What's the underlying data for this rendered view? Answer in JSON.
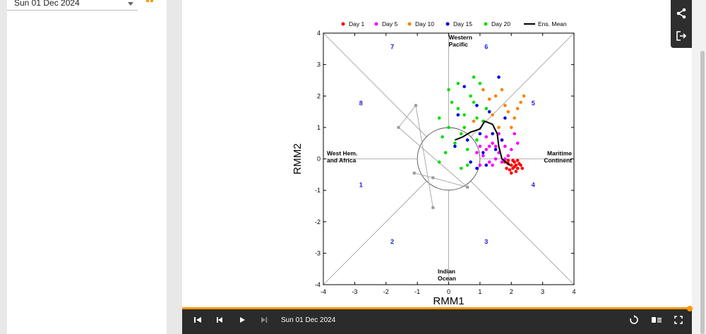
{
  "sidebar": {
    "date_select": "Sun 01 Dec 2024"
  },
  "plot": {
    "xlabel": "RMM1",
    "ylabel": "RMM2",
    "xticks": [
      "-4",
      "-3",
      "-2",
      "-1",
      "0",
      "1",
      "2",
      "3",
      "4"
    ],
    "yticks": [
      "4",
      "3",
      "2",
      "1",
      "0",
      "-1",
      "-2",
      "-3",
      "-4"
    ],
    "phases": [
      "1",
      "2",
      "3",
      "4",
      "5",
      "6",
      "7",
      "8"
    ],
    "regions": {
      "top": [
        "Western",
        "Pacific"
      ],
      "bottom": [
        "Indian",
        "Ocean"
      ],
      "left": [
        "West Hem.",
        "and Africa"
      ],
      "right": [
        "Maritime",
        "Continent"
      ]
    },
    "legend": [
      {
        "label": "Day 1",
        "color": "#ff0000"
      },
      {
        "label": "Day 5",
        "color": "#ff00ff"
      },
      {
        "label": "Day 10",
        "color": "#ff8000"
      },
      {
        "label": "Day 15",
        "color": "#0000e0"
      },
      {
        "label": "Day 20",
        "color": "#00e000"
      },
      {
        "label": "Ens. Mean",
        "color": "#000000"
      }
    ]
  },
  "chart_data": {
    "type": "scatter",
    "xlabel": "RMM1",
    "ylabel": "RMM2",
    "xlim": [
      -4,
      4
    ],
    "ylim": [
      -4,
      4
    ],
    "ensemble_mean": [
      [
        1.95,
        -0.2
      ],
      [
        1.7,
        0.0
      ],
      [
        1.6,
        0.4
      ],
      [
        1.55,
        0.8
      ],
      [
        1.4,
        1.1
      ],
      [
        1.15,
        1.2
      ],
      [
        1.0,
        0.95
      ],
      [
        0.7,
        0.85
      ],
      [
        0.45,
        0.7
      ],
      [
        0.2,
        0.6
      ]
    ],
    "observed": [
      [
        -1.1,
        -0.45
      ],
      [
        -0.5,
        -0.6
      ],
      [
        0.6,
        -0.9
      ],
      [
        -1.6,
        1.0
      ],
      [
        -1.05,
        1.7
      ],
      [
        -0.5,
        -1.55
      ]
    ],
    "series": [
      {
        "name": "Day 1",
        "color": "#ff0000",
        "points": [
          [
            1.8,
            -0.1
          ],
          [
            1.9,
            -0.15
          ],
          [
            2.0,
            -0.2
          ],
          [
            2.1,
            -0.25
          ],
          [
            2.2,
            -0.3
          ],
          [
            1.85,
            -0.3
          ],
          [
            2.05,
            -0.05
          ],
          [
            2.15,
            -0.4
          ],
          [
            1.95,
            -0.35
          ],
          [
            2.25,
            -0.15
          ],
          [
            2.3,
            -0.2
          ],
          [
            2.0,
            -0.45
          ],
          [
            2.1,
            -0.1
          ],
          [
            2.2,
            -0.05
          ],
          [
            1.9,
            -0.05
          ],
          [
            2.35,
            -0.3
          ],
          [
            2.05,
            -0.3
          ],
          [
            2.15,
            -0.2
          ]
        ]
      },
      {
        "name": "Day 5",
        "color": "#ff00ff",
        "points": [
          [
            1.2,
            0.3
          ],
          [
            1.4,
            0.5
          ],
          [
            1.6,
            0.2
          ],
          [
            1.8,
            0.4
          ],
          [
            1.5,
            0.0
          ],
          [
            1.3,
            -0.1
          ],
          [
            1.7,
            0.6
          ],
          [
            1.9,
            0.1
          ],
          [
            1.0,
            0.4
          ],
          [
            1.1,
            0.1
          ],
          [
            1.6,
            0.8
          ],
          [
            2.0,
            0.3
          ],
          [
            2.2,
            0.5
          ],
          [
            1.4,
            -0.2
          ],
          [
            1.2,
            0.7
          ],
          [
            0.9,
            0.2
          ],
          [
            1.7,
            -0.1
          ],
          [
            1.5,
            0.4
          ],
          [
            1.8,
            0.0
          ],
          [
            2.1,
            0.8
          ],
          [
            1.3,
            0.4
          ],
          [
            1.0,
            -0.2
          ]
        ]
      },
      {
        "name": "Day 10",
        "color": "#ff8000",
        "points": [
          [
            1.1,
            2.2
          ],
          [
            1.5,
            2.0
          ],
          [
            1.9,
            1.5
          ],
          [
            2.3,
            1.8
          ],
          [
            2.4,
            2.0
          ],
          [
            2.1,
            1.3
          ],
          [
            1.8,
            1.7
          ],
          [
            1.3,
            1.9
          ],
          [
            1.6,
            1.0
          ],
          [
            2.0,
            1.0
          ],
          [
            1.2,
            1.6
          ],
          [
            0.8,
            1.2
          ],
          [
            1.7,
            2.2
          ],
          [
            2.2,
            1.6
          ],
          [
            1.4,
            1.4
          ]
        ]
      },
      {
        "name": "Day 15",
        "color": "#0000e0",
        "points": [
          [
            1.0,
            0.8
          ],
          [
            1.3,
            1.5
          ],
          [
            1.6,
            2.6
          ],
          [
            0.9,
            1.7
          ],
          [
            1.5,
            0.3
          ],
          [
            0.6,
            0.6
          ],
          [
            0.3,
            1.4
          ],
          [
            1.1,
            0.2
          ],
          [
            1.8,
            1.3
          ],
          [
            0.7,
            -0.1
          ],
          [
            1.2,
            -0.2
          ],
          [
            0.5,
            2.3
          ],
          [
            0.2,
            0.4
          ],
          [
            1.4,
            0.8
          ],
          [
            0.9,
            -0.3
          ],
          [
            1.7,
            0.6
          ]
        ]
      },
      {
        "name": "Day 20",
        "color": "#00e000",
        "points": [
          [
            -0.3,
            1.3
          ],
          [
            0.0,
            2.2
          ],
          [
            0.3,
            1.6
          ],
          [
            0.5,
            1.0
          ],
          [
            0.8,
            1.8
          ],
          [
            1.0,
            2.4
          ],
          [
            0.2,
            0.5
          ],
          [
            -0.2,
            0.7
          ],
          [
            0.4,
            -0.3
          ],
          [
            0.6,
            0.3
          ],
          [
            1.1,
            1.2
          ],
          [
            0.0,
            1.0
          ],
          [
            0.7,
            2.0
          ],
          [
            0.9,
            0.6
          ],
          [
            0.3,
            2.4
          ],
          [
            -0.1,
            0.2
          ],
          [
            0.5,
            1.4
          ],
          [
            0.8,
            2.6
          ],
          [
            1.2,
            1.6
          ],
          [
            0.1,
            1.8
          ],
          [
            0.6,
            -0.2
          ],
          [
            0.4,
            0.8
          ],
          [
            -0.3,
            -0.1
          ],
          [
            0.9,
            1.3
          ]
        ]
      }
    ]
  },
  "timeline": {
    "date": "Sun 01 Dec 2024"
  },
  "icons": {
    "share": "share-icon",
    "logout": "logout-icon",
    "first": "skip-first-icon",
    "prev": "step-back-icon",
    "play": "play-icon",
    "next": "skip-end-icon",
    "loop": "loop-icon",
    "speed": "speed-icon",
    "fullscreen": "fullscreen-icon"
  }
}
